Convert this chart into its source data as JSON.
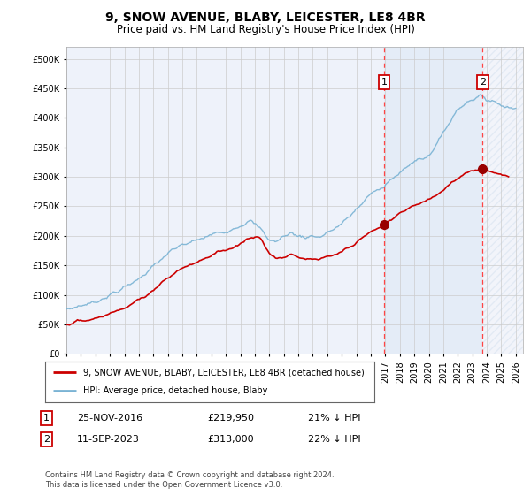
{
  "title": "9, SNOW AVENUE, BLABY, LEICESTER, LE8 4BR",
  "subtitle": "Price paid vs. HM Land Registry's House Price Index (HPI)",
  "ylabel_ticks": [
    "£0",
    "£50K",
    "£100K",
    "£150K",
    "£200K",
    "£250K",
    "£300K",
    "£350K",
    "£400K",
    "£450K",
    "£500K"
  ],
  "ytick_values": [
    0,
    50000,
    100000,
    150000,
    200000,
    250000,
    300000,
    350000,
    400000,
    450000,
    500000
  ],
  "ylim": [
    0,
    520000
  ],
  "xlim_start": 1995.0,
  "xlim_end": 2026.5,
  "sale1_x": 2016.92,
  "sale1_y": 219950,
  "sale2_x": 2023.71,
  "sale2_y": 313000,
  "hpi_color": "#7ab3d4",
  "price_color": "#cc0000",
  "dashed_color": "#ff4444",
  "marker_color": "#990000",
  "background_color": "#eef2fa",
  "hatch_color": "#b8cce4",
  "grid_color": "#cccccc",
  "legend_label1": "9, SNOW AVENUE, BLABY, LEICESTER, LE8 4BR (detached house)",
  "legend_label2": "HPI: Average price, detached house, Blaby",
  "sale1_date": "25-NOV-2016",
  "sale1_price": "£219,950",
  "sale1_hpi": "21% ↓ HPI",
  "sale2_date": "11-SEP-2023",
  "sale2_price": "£313,000",
  "sale2_hpi": "22% ↓ HPI",
  "footnote": "Contains HM Land Registry data © Crown copyright and database right 2024.\nThis data is licensed under the Open Government Licence v3.0.",
  "font_family": "DejaVu Sans"
}
